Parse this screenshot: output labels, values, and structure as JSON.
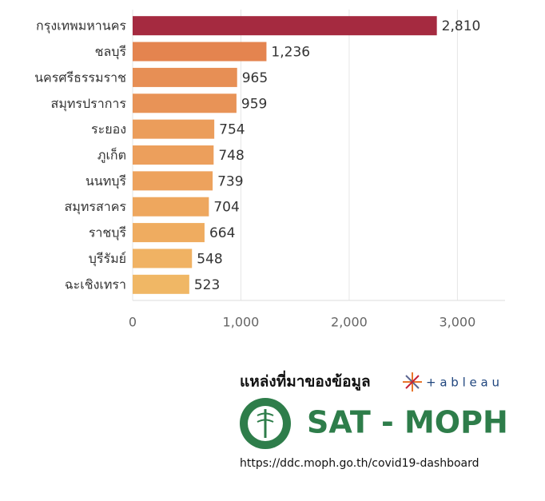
{
  "chart_data": {
    "type": "bar",
    "orientation": "horizontal",
    "categories": [
      "กรุงเทพมหานคร",
      "ชลบุรี",
      "นครศรีธรรมราช",
      "สมุทรปราการ",
      "ระยอง",
      "ภูเก็ต",
      "นนทบุรี",
      "สมุทรสาคร",
      "ราชบุรี",
      "บุรีรัมย์",
      "ฉะเชิงเทรา"
    ],
    "values": [
      2810,
      1236,
      965,
      959,
      754,
      748,
      739,
      704,
      664,
      548,
      523
    ],
    "value_labels": [
      "2,810",
      "1,236",
      "965",
      "959",
      "754",
      "748",
      "739",
      "704",
      "664",
      "548",
      "523"
    ],
    "colors": [
      "#a52a40",
      "#e4844f",
      "#e78f55",
      "#e89357",
      "#eb9d5b",
      "#ec9f5c",
      "#eda25d",
      "#eea75e",
      "#efac60",
      "#f0b263",
      "#f0b765"
    ],
    "xlim": [
      0,
      3440
    ],
    "xticks": [
      0,
      {
        "value": 1000,
        "label": "1,000"
      },
      {
        "value": 2000,
        "label": "2,000"
      },
      {
        "value": 3000,
        "label": "3,000"
      }
    ],
    "grid": true
  },
  "footer": {
    "source_label": "แหล่งที่มาของข้อมูล",
    "tableau": "+ a b l e a u",
    "org": "SAT - MOPH",
    "url": "https://ddc.moph.go.th/covid19-dashboard"
  }
}
